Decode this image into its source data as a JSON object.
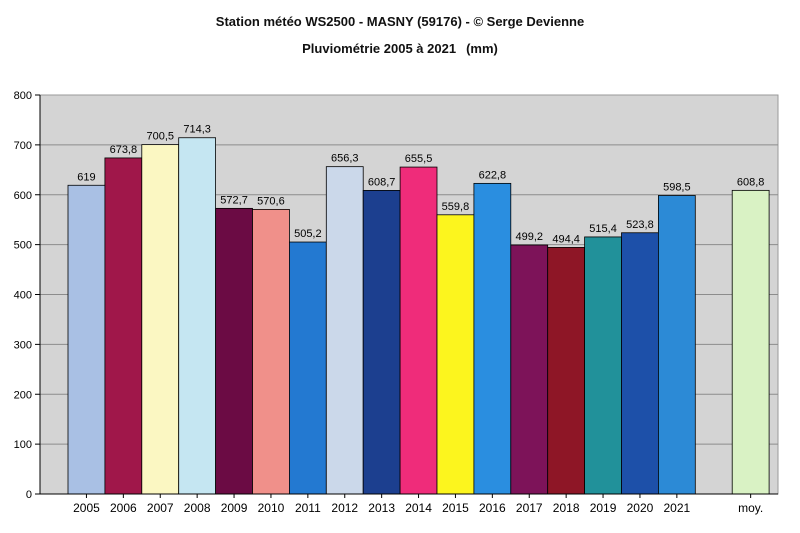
{
  "chart_data": {
    "type": "bar",
    "title": "Station météo WS2500 - MASNY (59176) - © Serge Devienne",
    "subtitle": "Pluviométrie  2005 à 2021",
    "unit": "(mm)",
    "xlabel": "",
    "ylabel": "",
    "ylim": [
      0,
      800
    ],
    "yticks": [
      0,
      100,
      200,
      300,
      400,
      500,
      600,
      700,
      800
    ],
    "grid": true,
    "legend": "none",
    "categories": [
      "2005",
      "2006",
      "2007",
      "2008",
      "2009",
      "2010",
      "2011",
      "2012",
      "2013",
      "2014",
      "2015",
      "2016",
      "2017",
      "2018",
      "2019",
      "2020",
      "2021",
      "moy."
    ],
    "values": [
      619,
      673.8,
      700.5,
      714.3,
      572.7,
      570.6,
      505.2,
      656.3,
      608.7,
      655.5,
      559.8,
      622.8,
      499.2,
      494.4,
      515.4,
      523.8,
      598.5,
      608.8
    ],
    "value_labels": [
      "619",
      "673,8",
      "700,5",
      "714,3",
      "572,7",
      "570,6",
      "505,2",
      "656,3",
      "608,7",
      "655,5",
      "559,8",
      "622,8",
      "499,2",
      "494,4",
      "515,4",
      "523,8",
      "598,5",
      "608,8"
    ],
    "bar_colors": [
      "#a9c0e4",
      "#a0174a",
      "#fbf7c2",
      "#c5e6f2",
      "#6b0b44",
      "#f0908a",
      "#2379d1",
      "#cbd8ea",
      "#1c3f8f",
      "#ef2c7a",
      "#fcf51e",
      "#2a8ee0",
      "#7d1359",
      "#8e1626",
      "#21919a",
      "#1d50a9",
      "#2c8ad6",
      "#d9f2c4"
    ],
    "plot_background": "#d4d4d4"
  }
}
